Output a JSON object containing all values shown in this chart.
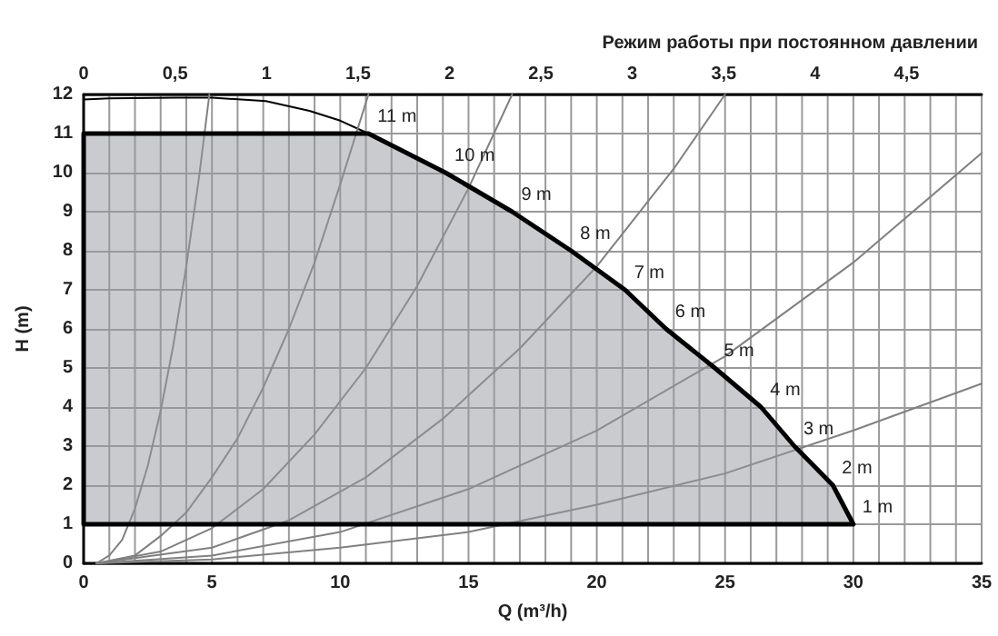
{
  "chart_data": {
    "type": "line",
    "title": "Режим работы при постоянном давлении",
    "xlabel": "Q (m³/h)",
    "ylabel": "H (m)",
    "xlim": [
      0,
      35
    ],
    "xticks": [
      0,
      {
        "value": 1,
        "label": null
      },
      {
        "value": 2,
        "label": null
      },
      {
        "value": 3,
        "label": null
      },
      {
        "value": 4,
        "label": null
      },
      5,
      {
        "value": 6,
        "label": null
      },
      {
        "value": 7,
        "label": null
      },
      {
        "value": 8,
        "label": null
      },
      {
        "value": 9,
        "label": null
      },
      10,
      {
        "value": 11,
        "label": null
      },
      {
        "value": 12,
        "label": null
      },
      {
        "value": 13,
        "label": null
      },
      {
        "value": 14,
        "label": null
      },
      15,
      {
        "value": 16,
        "label": null
      },
      {
        "value": 17,
        "label": null
      },
      {
        "value": 18,
        "label": null
      },
      {
        "value": 19,
        "label": null
      },
      20,
      {
        "value": 21,
        "label": null
      },
      {
        "value": 22,
        "label": null
      },
      {
        "value": 23,
        "label": null
      },
      {
        "value": 24,
        "label": null
      },
      25,
      {
        "value": 26,
        "label": null
      },
      {
        "value": 27,
        "label": null
      },
      {
        "value": 28,
        "label": null
      },
      {
        "value": 29,
        "label": null
      },
      30,
      {
        "value": 31,
        "label": null
      },
      {
        "value": 32,
        "label": null
      },
      {
        "value": 33,
        "label": null
      },
      {
        "value": 34,
        "label": null
      },
      35
    ],
    "ylim": [
      0,
      12
    ],
    "yticks": [
      0,
      1,
      2,
      3,
      4,
      5,
      6,
      7,
      8,
      9,
      10,
      11,
      12
    ],
    "x2lim": [
      0,
      4.91
    ],
    "x2ticks": [
      0,
      {
        "value": 0.5,
        "label": "0,5"
      },
      1,
      {
        "value": 1.5,
        "label": "1,5"
      },
      2,
      {
        "value": 2.5,
        "label": "2,5"
      },
      3,
      {
        "value": 3.5,
        "label": "3,5"
      },
      4,
      {
        "value": 4.5,
        "label": "4,5"
      }
    ],
    "grid": true,
    "marker": "none",
    "series": [
      {
        "type": "area",
        "color": "#000000",
        "x": [
          0,
          0,
          11.1,
          14.1,
          16.7,
          19.0,
          21.1,
          22.7,
          24.6,
          26.4,
          27.7,
          29.2,
          30
        ],
        "values": [
          1,
          11,
          11,
          10,
          9,
          8,
          7,
          6,
          5,
          4,
          3,
          2,
          1
        ]
      },
      {
        "color": "#000000",
        "x": [
          0,
          1,
          3.6,
          5,
          7.1,
          8.8,
          10,
          11.1
        ],
        "values": [
          11.87,
          11.9,
          11.92,
          11.92,
          11.83,
          11.58,
          11.33,
          11
        ]
      },
      {
        "color": "#808080",
        "x": [
          0.5,
          1,
          1.5,
          2,
          2.5,
          3,
          3.5,
          4,
          4.5,
          4.9
        ],
        "values": [
          0,
          0.2,
          0.6,
          1.4,
          2.5,
          3.9,
          5.6,
          7.6,
          9.9,
          12
        ]
      },
      {
        "color": "#808080",
        "x": [
          0.5,
          2,
          3,
          4,
          5,
          6,
          7,
          8,
          9,
          10,
          11.1
        ],
        "values": [
          0,
          0.2,
          0.7,
          1.3,
          2.2,
          3.2,
          4.5,
          6.0,
          7.7,
          9.7,
          12
        ]
      },
      {
        "color": "#808080",
        "x": [
          0.5,
          3,
          5,
          7,
          9,
          11,
          13,
          15,
          16.7
        ],
        "values": [
          0,
          0.3,
          0.9,
          1.9,
          3.3,
          5.0,
          7.1,
          9.6,
          12
        ]
      },
      {
        "color": "#808080",
        "x": [
          0.5,
          5,
          8,
          11,
          14,
          17,
          20,
          23,
          25
        ],
        "values": [
          0,
          0.4,
          1.1,
          2.2,
          3.7,
          5.5,
          7.6,
          10.1,
          12
        ]
      },
      {
        "color": "#808080",
        "x": [
          0.5,
          5,
          10,
          15,
          20,
          25,
          30,
          35
        ],
        "values": [
          0,
          0.2,
          0.8,
          1.9,
          3.4,
          5.3,
          7.7,
          10.5
        ]
      },
      {
        "color": "#808080",
        "x": [
          0.5,
          5,
          10,
          15,
          20,
          25,
          30,
          35
        ],
        "values": [
          0,
          0.1,
          0.4,
          0.8,
          1.5,
          2.3,
          3.4,
          4.6
        ]
      }
    ],
    "annotations": [
      {
        "text": "11 m",
        "x": 11.1,
        "y": 11
      },
      {
        "text": "10 m",
        "x": 14.1,
        "y": 10
      },
      {
        "text": "9 m",
        "x": 16.7,
        "y": 9
      },
      {
        "text": "8 m",
        "x": 19.0,
        "y": 8
      },
      {
        "text": "7 m",
        "x": 21.1,
        "y": 7
      },
      {
        "text": "6 m",
        "x": 22.7,
        "y": 6
      },
      {
        "text": "5 m",
        "x": 24.6,
        "y": 5
      },
      {
        "text": "4 m",
        "x": 26.4,
        "y": 4
      },
      {
        "text": "3 m",
        "x": 27.7,
        "y": 3
      },
      {
        "text": "2 m",
        "x": 29.2,
        "y": 2
      },
      {
        "text": "1 m",
        "x": 30,
        "y": 1
      }
    ]
  }
}
